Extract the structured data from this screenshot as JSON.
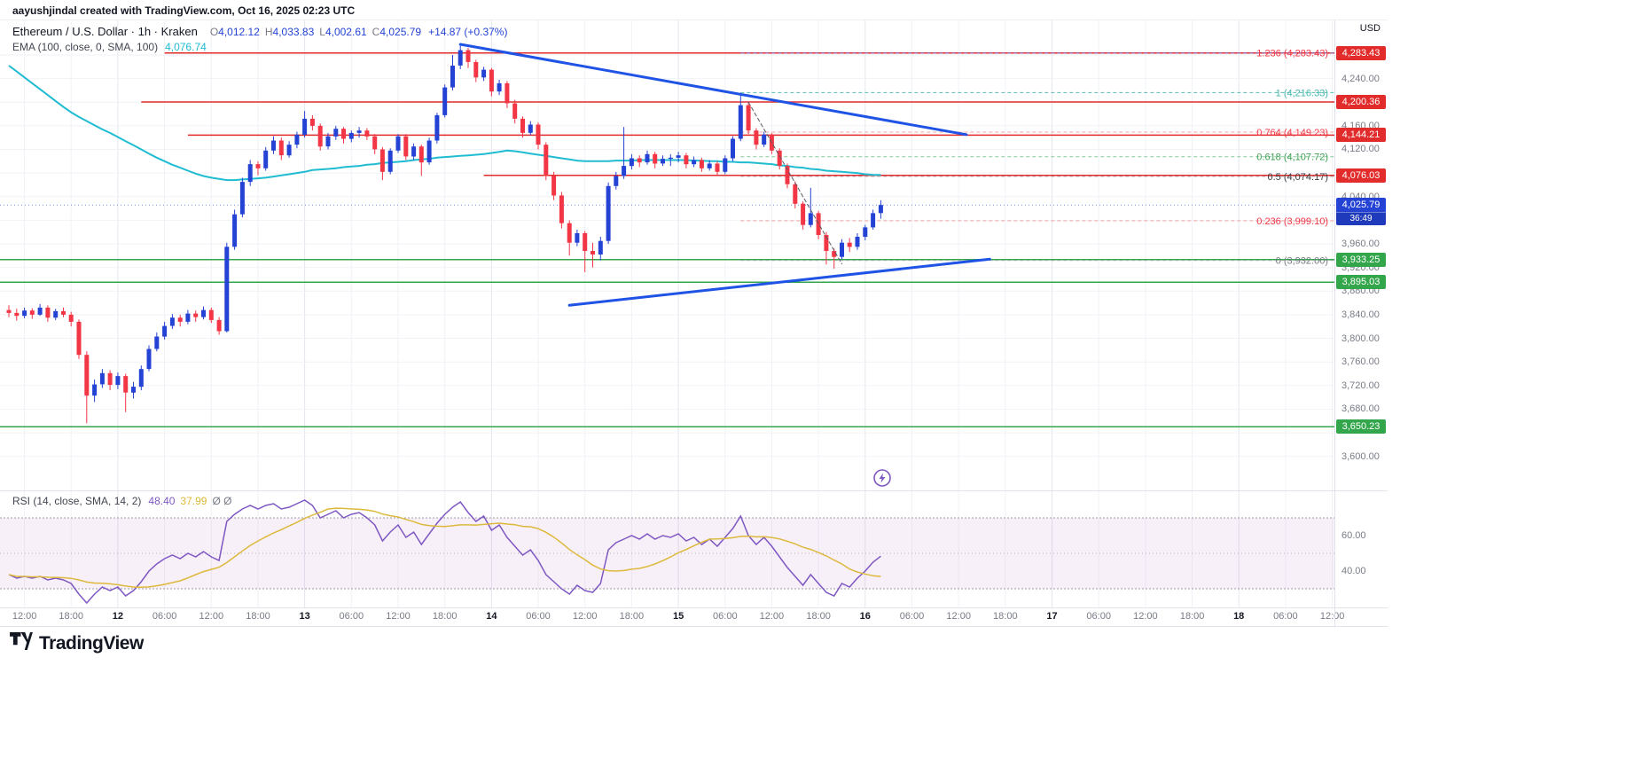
{
  "attribution": "aayushjindal created with TradingView.com, Oct 16, 2025 02:23 UTC",
  "header": {
    "symbol": "Ethereum / U.S. Dollar · 1h · Kraken",
    "ohlc": [
      {
        "k": "O",
        "v": "4,012.12"
      },
      {
        "k": "H",
        "v": "4,033.83"
      },
      {
        "k": "L",
        "v": "4,002.61"
      },
      {
        "k": "C",
        "v": "4,025.79"
      }
    ],
    "change": "+14.87 (+0.37%)",
    "ema_label": "EMA (100, close, 0, SMA, 100)",
    "ema_value": "4,076.74"
  },
  "price_axis": {
    "currency": "USD",
    "ticks": [
      "4,240.00",
      "4,160.00",
      "4,120.00",
      "4,040.00",
      "4,000.00",
      "3,960.00",
      "3,920.00",
      "3,880.00",
      "3,840.00",
      "3,800.00",
      "3,760.00",
      "3,720.00",
      "3,680.00",
      "3,600.00"
    ],
    "badges": [
      {
        "text": "4,283.43",
        "price": 4283.43,
        "bg": "#e22b2b"
      },
      {
        "text": "4,200.36",
        "price": 4200.36,
        "bg": "#e22b2b"
      },
      {
        "text": "4,144.21",
        "price": 4144.21,
        "bg": "#e22b2b"
      },
      {
        "text": "4,076.03",
        "price": 4076.03,
        "bg": "#e22b2b"
      },
      {
        "text": "4,025.79",
        "price": 4025.79,
        "bg": "#2443d4",
        "countdown": "36:49"
      },
      {
        "text": "3,933.25",
        "price": 3933.25,
        "bg": "#33a64c"
      },
      {
        "text": "3,895.03",
        "price": 3895.03,
        "bg": "#33a64c"
      },
      {
        "text": "3,650.23",
        "price": 3650.23,
        "bg": "#33a64c"
      }
    ]
  },
  "rsi_panel": {
    "label": "RSI (14, close, SMA, 14, 2)",
    "value": "48.40",
    "ma_value": "37.99",
    "hidden_values": "Ø Ø",
    "axis_ticks": [
      "60.00",
      "40.00"
    ]
  },
  "time_axis": {
    "labels": [
      {
        "t": "12:00",
        "major": false
      },
      {
        "t": "18:00",
        "major": false
      },
      {
        "t": "12",
        "major": true
      },
      {
        "t": "06:00",
        "major": false
      },
      {
        "t": "12:00",
        "major": false
      },
      {
        "t": "18:00",
        "major": false
      },
      {
        "t": "13",
        "major": true
      },
      {
        "t": "06:00",
        "major": false
      },
      {
        "t": "12:00",
        "major": false
      },
      {
        "t": "18:00",
        "major": false
      },
      {
        "t": "14",
        "major": true
      },
      {
        "t": "06:00",
        "major": false
      },
      {
        "t": "12:00",
        "major": false
      },
      {
        "t": "18:00",
        "major": false
      },
      {
        "t": "15",
        "major": true
      },
      {
        "t": "06:00",
        "major": false
      },
      {
        "t": "12:00",
        "major": false
      },
      {
        "t": "18:00",
        "major": false
      },
      {
        "t": "16",
        "major": true
      },
      {
        "t": "06:00",
        "major": false
      },
      {
        "t": "12:00",
        "major": false
      },
      {
        "t": "18:00",
        "major": false
      },
      {
        "t": "17",
        "major": true
      },
      {
        "t": "06:00",
        "major": false
      },
      {
        "t": "12:00",
        "major": false
      },
      {
        "t": "18:00",
        "major": false
      },
      {
        "t": "18",
        "major": true
      },
      {
        "t": "06:00",
        "major": false
      },
      {
        "t": "12:00",
        "major": false
      }
    ]
  },
  "footer": {
    "brand": "TradingView"
  },
  "colors": {
    "up": "#2443d4",
    "down": "#f23645",
    "ema": "#1fbcd2",
    "trend": "#1e53e5",
    "res_line": "#e22b2b",
    "sup_line": "#33a64c",
    "rsi": "#7e57c2",
    "rsi_ma": "#dcb93c",
    "grid": "#f0f2f7",
    "grid_major": "#e4e7ef",
    "axis_text": "#787b86"
  },
  "chart_data": {
    "type": "candlestick",
    "title": "Ethereum / U.S. Dollar, 1h, Kraken",
    "interval": "1h",
    "exchange": "Kraken",
    "ylim": [
      3580,
      4310
    ],
    "candles": [
      [
        3848,
        3856,
        3836,
        3843
      ],
      [
        3843,
        3850,
        3830,
        3838
      ],
      [
        3838,
        3852,
        3834,
        3847
      ],
      [
        3847,
        3851,
        3833,
        3840
      ],
      [
        3840,
        3858,
        3838,
        3852
      ],
      [
        3852,
        3856,
        3828,
        3835
      ],
      [
        3835,
        3850,
        3831,
        3846
      ],
      [
        3846,
        3852,
        3836,
        3840
      ],
      [
        3840,
        3845,
        3820,
        3828
      ],
      [
        3828,
        3832,
        3765,
        3772
      ],
      [
        3772,
        3778,
        3656,
        3703
      ],
      [
        3703,
        3730,
        3692,
        3722
      ],
      [
        3722,
        3748,
        3716,
        3741
      ],
      [
        3741,
        3746,
        3712,
        3721
      ],
      [
        3721,
        3742,
        3714,
        3736
      ],
      [
        3736,
        3740,
        3675,
        3708
      ],
      [
        3708,
        3726,
        3698,
        3718
      ],
      [
        3718,
        3754,
        3712,
        3748
      ],
      [
        3748,
        3788,
        3744,
        3782
      ],
      [
        3782,
        3810,
        3778,
        3803
      ],
      [
        3803,
        3828,
        3798,
        3821
      ],
      [
        3821,
        3841,
        3816,
        3835
      ],
      [
        3835,
        3840,
        3820,
        3828
      ],
      [
        3828,
        3848,
        3824,
        3842
      ],
      [
        3842,
        3847,
        3828,
        3836
      ],
      [
        3836,
        3854,
        3832,
        3848
      ],
      [
        3848,
        3852,
        3826,
        3831
      ],
      [
        3831,
        3836,
        3806,
        3812
      ],
      [
        3812,
        3962,
        3810,
        3955
      ],
      [
        3955,
        4018,
        3950,
        4010
      ],
      [
        4010,
        4072,
        4005,
        4065
      ],
      [
        4065,
        4102,
        4058,
        4095
      ],
      [
        4095,
        4100,
        4076,
        4088
      ],
      [
        4088,
        4124,
        4084,
        4118
      ],
      [
        4118,
        4142,
        4112,
        4135
      ],
      [
        4135,
        4140,
        4102,
        4110
      ],
      [
        4110,
        4134,
        4106,
        4128
      ],
      [
        4128,
        4150,
        4122,
        4145
      ],
      [
        4145,
        4185,
        4140,
        4172
      ],
      [
        4172,
        4178,
        4152,
        4160
      ],
      [
        4160,
        4164,
        4118,
        4125
      ],
      [
        4125,
        4148,
        4120,
        4142
      ],
      [
        4142,
        4160,
        4136,
        4155
      ],
      [
        4155,
        4158,
        4130,
        4138
      ],
      [
        4138,
        4152,
        4132,
        4148
      ],
      [
        4148,
        4158,
        4140,
        4152
      ],
      [
        4152,
        4156,
        4136,
        4142
      ],
      [
        4142,
        4146,
        4112,
        4120
      ],
      [
        4120,
        4124,
        4068,
        4082
      ],
      [
        4082,
        4122,
        4078,
        4118
      ],
      [
        4118,
        4146,
        4114,
        4142
      ],
      [
        4142,
        4146,
        4102,
        4108
      ],
      [
        4108,
        4130,
        4102,
        4125
      ],
      [
        4125,
        4128,
        4075,
        4098
      ],
      [
        4098,
        4140,
        4094,
        4135
      ],
      [
        4135,
        4182,
        4130,
        4178
      ],
      [
        4178,
        4230,
        4174,
        4225
      ],
      [
        4225,
        4280,
        4220,
        4262
      ],
      [
        4262,
        4296,
        4256,
        4288
      ],
      [
        4288,
        4292,
        4258,
        4268
      ],
      [
        4268,
        4272,
        4234,
        4242
      ],
      [
        4242,
        4260,
        4236,
        4255
      ],
      [
        4255,
        4258,
        4210,
        4218
      ],
      [
        4218,
        4238,
        4212,
        4232
      ],
      [
        4232,
        4236,
        4190,
        4198
      ],
      [
        4198,
        4204,
        4164,
        4172
      ],
      [
        4172,
        4176,
        4140,
        4148
      ],
      [
        4148,
        4168,
        4144,
        4162
      ],
      [
        4162,
        4166,
        4120,
        4128
      ],
      [
        4128,
        4132,
        4068,
        4075
      ],
      [
        4075,
        4082,
        4034,
        4042
      ],
      [
        4042,
        4048,
        3986,
        3995
      ],
      [
        3995,
        4000,
        3940,
        3962
      ],
      [
        3962,
        3984,
        3956,
        3978
      ],
      [
        3978,
        3982,
        3912,
        3948
      ],
      [
        3948,
        3962,
        3920,
        3942
      ],
      [
        3942,
        3972,
        3932,
        3965
      ],
      [
        3965,
        4064,
        3960,
        4058
      ],
      [
        4058,
        4082,
        4052,
        4075
      ],
      [
        4075,
        4158,
        4070,
        4092
      ],
      [
        4092,
        4112,
        4086,
        4105
      ],
      [
        4105,
        4110,
        4090,
        4098
      ],
      [
        4098,
        4118,
        4094,
        4112
      ],
      [
        4112,
        4116,
        4088,
        4096
      ],
      [
        4096,
        4110,
        4092,
        4104
      ],
      [
        4104,
        4112,
        4092,
        4106
      ],
      [
        4106,
        4116,
        4098,
        4110
      ],
      [
        4110,
        4114,
        4088,
        4095
      ],
      [
        4095,
        4108,
        4090,
        4102
      ],
      [
        4102,
        4106,
        4082,
        4088
      ],
      [
        4088,
        4102,
        4084,
        4096
      ],
      [
        4096,
        4100,
        4076,
        4082
      ],
      [
        4082,
        4110,
        4078,
        4105
      ],
      [
        4105,
        4142,
        4100,
        4138
      ],
      [
        4138,
        4216,
        4134,
        4195
      ],
      [
        4195,
        4200,
        4146,
        4152
      ],
      [
        4152,
        4156,
        4120,
        4128
      ],
      [
        4128,
        4150,
        4124,
        4145
      ],
      [
        4145,
        4148,
        4112,
        4118
      ],
      [
        4118,
        4122,
        4086,
        4092
      ],
      [
        4092,
        4096,
        4054,
        4061
      ],
      [
        4061,
        4066,
        4020,
        4028
      ],
      [
        4028,
        4032,
        3984,
        3992
      ],
      [
        3992,
        4055,
        3988,
        4012
      ],
      [
        4012,
        4016,
        3968,
        3975
      ],
      [
        3975,
        3980,
        3925,
        3948
      ],
      [
        3948,
        3952,
        3918,
        3938
      ],
      [
        3938,
        3968,
        3934,
        3962
      ],
      [
        3962,
        3970,
        3946,
        3955
      ],
      [
        3955,
        3978,
        3950,
        3972
      ],
      [
        3972,
        3992,
        3966,
        3988
      ],
      [
        3988,
        4018,
        3984,
        4012
      ],
      [
        4012.12,
        4033.83,
        4002.61,
        4025.79
      ]
    ],
    "ema100": [
      4262,
      4252,
      4242,
      4232,
      4222,
      4212,
      4202,
      4192,
      4183,
      4175,
      4168,
      4161,
      4154,
      4148,
      4141,
      4134,
      4127,
      4120,
      4113,
      4106,
      4100,
      4094,
      4089,
      4084,
      4079,
      4075,
      4072,
      4070,
      4068,
      4068,
      4069,
      4070,
      4071,
      4072,
      4074,
      4076,
      4078,
      4080,
      4082,
      4085,
      4086,
      4087,
      4088,
      4090,
      4091,
      4092,
      4094,
      4095,
      4097,
      4098,
      4099,
      4100,
      4102,
      4103,
      4104,
      4106,
      4107,
      4108,
      4109,
      4110,
      4111,
      4112,
      4114,
      4116,
      4118,
      4117,
      4115,
      4113,
      4111,
      4109,
      4107,
      4105,
      4103,
      4101,
      4100,
      4100,
      4100,
      4100,
      4101,
      4101,
      4101,
      4102,
      4102,
      4102,
      4102,
      4102,
      4102,
      4102,
      4101,
      4101,
      4100,
      4100,
      4099,
      4099,
      4098,
      4098,
      4097,
      4096,
      4095,
      4093,
      4092,
      4090,
      4089,
      4087,
      4086,
      4084,
      4083,
      4082,
      4081,
      4080,
      4078,
      4077,
      4076.74
    ],
    "rsi14": [
      38,
      36,
      37,
      36,
      37,
      35,
      36,
      35,
      33,
      27,
      22,
      27,
      31,
      29,
      31,
      26,
      29,
      34,
      40,
      44,
      47,
      49,
      47,
      50,
      48,
      51,
      48,
      46,
      68,
      72,
      75,
      77,
      75,
      77,
      78,
      75,
      76,
      78,
      80,
      77,
      70,
      72,
      74,
      70,
      72,
      73,
      70,
      66,
      57,
      62,
      66,
      59,
      62,
      55,
      61,
      67,
      72,
      76,
      79,
      73,
      68,
      71,
      63,
      66,
      59,
      54,
      49,
      52,
      46,
      38,
      34,
      30,
      27,
      32,
      29,
      28,
      33,
      52,
      56,
      58,
      60,
      58,
      61,
      58,
      60,
      59,
      61,
      57,
      59,
      55,
      58,
      54,
      59,
      64,
      71,
      60,
      55,
      59,
      54,
      48,
      42,
      37,
      32,
      38,
      33,
      28,
      26,
      33,
      31,
      36,
      40,
      45,
      48.4
    ],
    "rsi_bands": {
      "upper": 70,
      "middle": 50,
      "lower": 30
    },
    "price_line": 4025.79,
    "hlines": [
      {
        "name": "resistance-line-4283",
        "price": 4283.43,
        "from": 20,
        "color": "#e22b2b"
      },
      {
        "name": "resistance-line-4200",
        "price": 4200.36,
        "from": 17,
        "color": "#e22b2b"
      },
      {
        "name": "resistance-line-4144",
        "price": 4144.21,
        "from": 23,
        "color": "#e22b2b"
      },
      {
        "name": "resistance-line-4076",
        "price": 4076.03,
        "from": 61,
        "color": "#e22b2b"
      },
      {
        "name": "support-line-3933",
        "price": 3933.25,
        "from": 0,
        "color": "#33a64c"
      },
      {
        "name": "support-line-3895",
        "price": 3895.03,
        "from": 0,
        "color": "#33a64c"
      },
      {
        "name": "support-line-3650",
        "price": 3650.23,
        "from": 0,
        "color": "#33a64c"
      }
    ],
    "trendlines": [
      {
        "name": "descending-trendline",
        "from": [
          58,
          4298
        ],
        "to": [
          123,
          4145
        ],
        "color": "#1e53e5",
        "width": 3
      },
      {
        "name": "ascending-trendline",
        "from": [
          72,
          3856
        ],
        "to": [
          126,
          3934
        ],
        "color": "#1e53e5",
        "width": 3
      },
      {
        "name": "decline-path-dashed",
        "from": [
          95,
          4200
        ],
        "to": [
          107,
          3926
        ],
        "color": "#565a66",
        "width": 1,
        "dash": "4,3"
      }
    ],
    "fib": {
      "from_index": 94,
      "levels": [
        {
          "label": "1.236 (4,283.43)",
          "price": 4283.43,
          "color": "#f23645",
          "line": "#7b83eb"
        },
        {
          "label": "1 (4,216.33)",
          "price": 4216.33,
          "color": "#45b8ac",
          "line": "#45b8ac"
        },
        {
          "label": "0.764 (4,149.23)",
          "price": 4149.23,
          "color": "#f23645",
          "line": "#ef9a9a"
        },
        {
          "label": "0.618 (4,107.72)",
          "price": 4107.72,
          "color": "#3c9e50",
          "line": "#7bc394"
        },
        {
          "label": "0.5 (4,074.17)",
          "price": 4074.17,
          "color": "#3c4043",
          "line": "#b0b3bc"
        },
        {
          "label": "0.236 (3,999.10)",
          "price": 3999.1,
          "color": "#f23645",
          "line": "#ef9a9a"
        },
        {
          "label": "0 (3,932.00)",
          "price": 3932,
          "color": "#787b86",
          "line": "#b0b3bc"
        }
      ]
    }
  }
}
